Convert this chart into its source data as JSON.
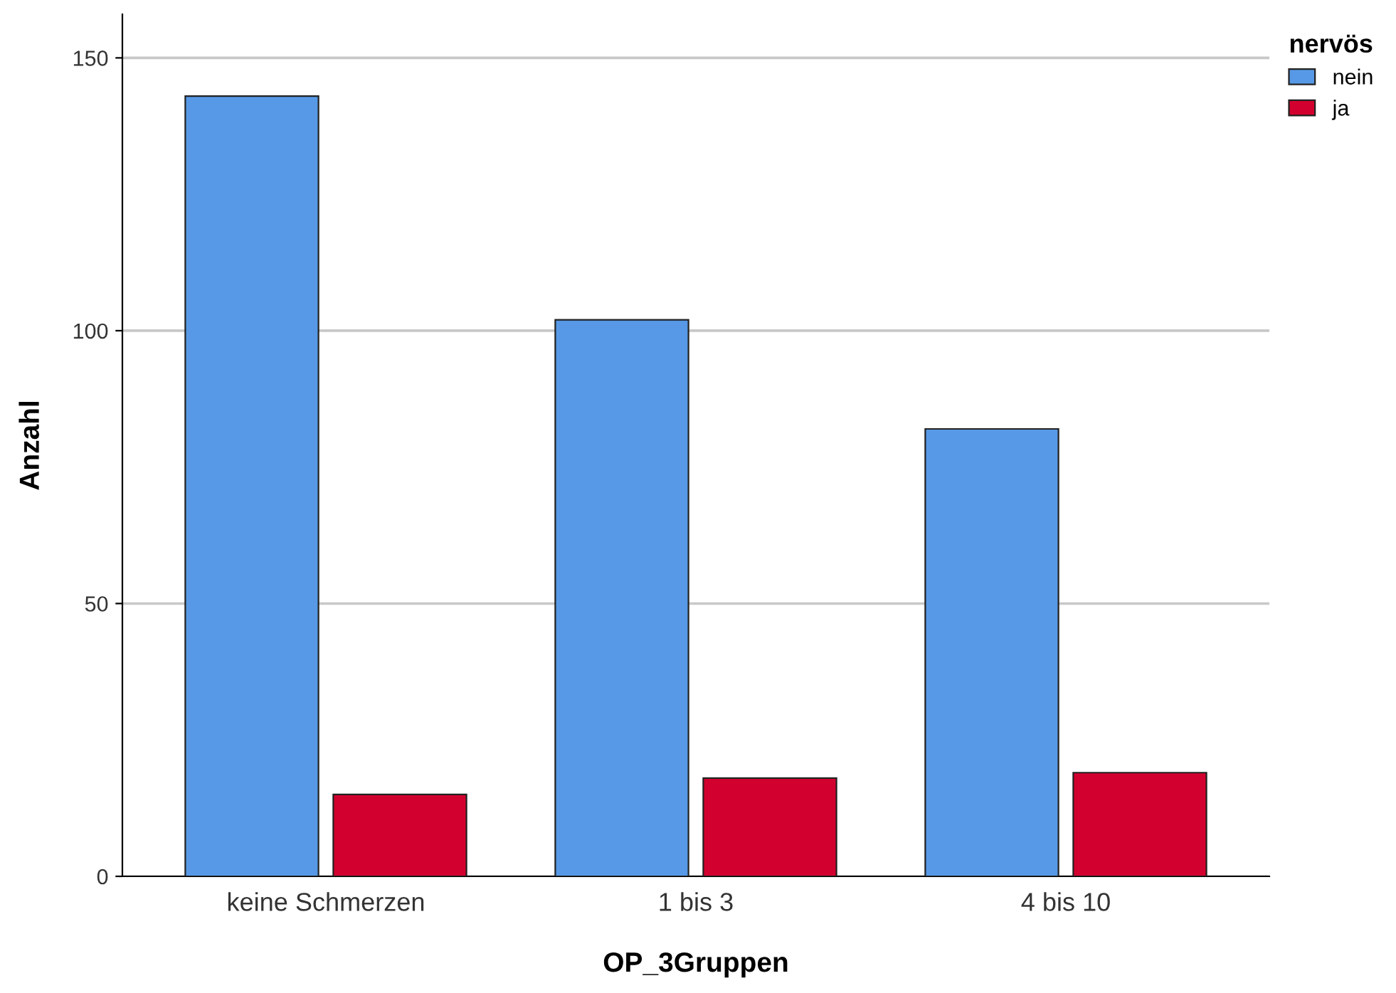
{
  "chart_data": {
    "type": "bar",
    "xlabel": "OP_3Gruppen",
    "ylabel": "Anzahl",
    "legend_title": "nervös",
    "categories": [
      "keine Schmerzen",
      "1 bis 3",
      "4 bis 10"
    ],
    "series": [
      {
        "name": "nein",
        "color": "#5799e6",
        "values": [
          143,
          102,
          82
        ]
      },
      {
        "name": "ja",
        "color": "#d2002e",
        "values": [
          15,
          18,
          19
        ]
      }
    ],
    "ylim": [
      0,
      158
    ],
    "yticks": [
      0,
      50,
      100,
      150
    ],
    "grid": "y",
    "legend": "top right"
  }
}
